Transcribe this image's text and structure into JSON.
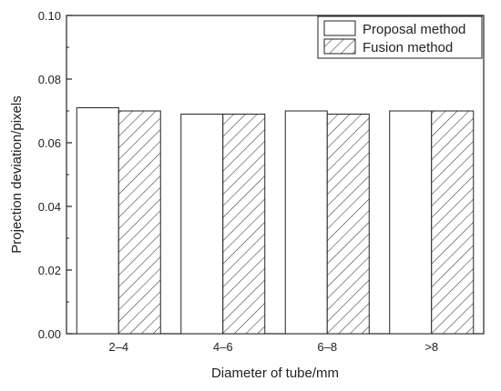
{
  "chart_data": {
    "type": "bar",
    "title": "",
    "xlabel": "Diameter of tube/mm",
    "ylabel": "Projection deviation/pixels",
    "categories": [
      "2–4",
      "4–6",
      "6–8",
      ">8"
    ],
    "ylim": [
      0.0,
      0.1
    ],
    "yticks": [
      "0.00",
      "0.02",
      "0.04",
      "0.06",
      "0.08",
      "0.10"
    ],
    "grid": false,
    "legend_position": "top-right",
    "series": [
      {
        "name": "Proposal method",
        "values": [
          0.071,
          0.069,
          0.07,
          0.07
        ],
        "fill": "#ffffff",
        "pattern": "none"
      },
      {
        "name": "Fusion method",
        "values": [
          0.07,
          0.069,
          0.069,
          0.07
        ],
        "fill": "#ffffff",
        "pattern": "diagonal-hatch"
      }
    ]
  }
}
